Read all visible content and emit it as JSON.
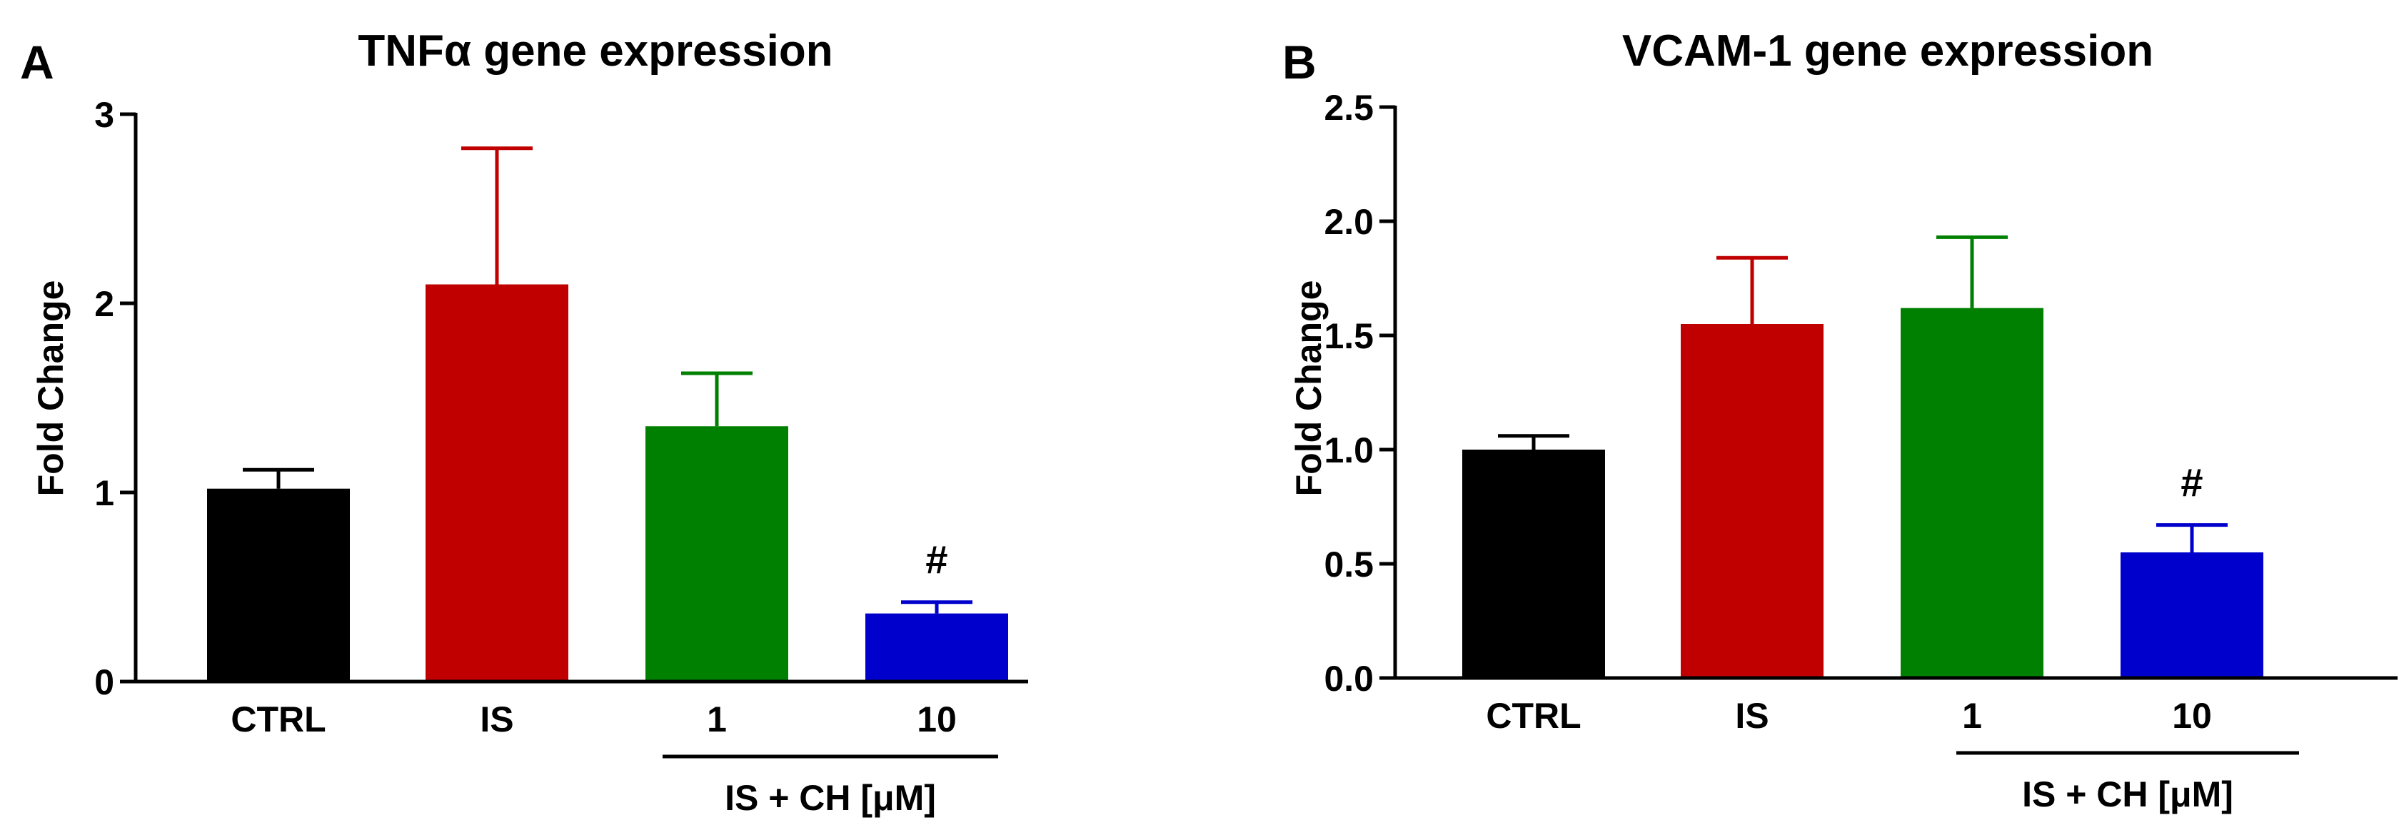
{
  "chart_data": [
    {
      "panel": "A",
      "type": "bar",
      "title": "TNFα gene expression",
      "xlabel": "",
      "ylabel": "Fold Change",
      "ylim": [
        0,
        3
      ],
      "yticks": [
        "0",
        "1",
        "2",
        "3"
      ],
      "ytick_values": [
        0,
        1,
        2,
        3
      ],
      "categories": [
        "CTRL",
        "IS",
        "1",
        "10"
      ],
      "values": [
        1.02,
        2.1,
        1.35,
        0.36
      ],
      "errors": [
        0.1,
        0.72,
        0.28,
        0.06
      ],
      "colors": [
        "#000000",
        "#c00000",
        "#008000",
        "#0000cc"
      ],
      "annotations": [
        "",
        "",
        "",
        "#"
      ],
      "group_label": "IS + CH [μM]",
      "grid": false
    },
    {
      "panel": "B",
      "type": "bar",
      "title": "VCAM-1 gene expression",
      "xlabel": "",
      "ylabel": "Fold Change",
      "ylim": [
        0,
        2.5
      ],
      "yticks": [
        "0.0",
        "0.5",
        "1.0",
        "1.5",
        "2.0",
        "2.5"
      ],
      "ytick_values": [
        0,
        0.5,
        1,
        1.5,
        2,
        2.5
      ],
      "categories": [
        "CTRL",
        "IS",
        "1",
        "10"
      ],
      "values": [
        1.0,
        1.55,
        1.62,
        0.55
      ],
      "errors": [
        0.06,
        0.29,
        0.31,
        0.12
      ],
      "colors": [
        "#000000",
        "#c00000",
        "#008000",
        "#0000cc"
      ],
      "annotations": [
        "",
        "",
        "",
        "#"
      ],
      "group_label": "IS + CH [μM]",
      "grid": false
    }
  ]
}
